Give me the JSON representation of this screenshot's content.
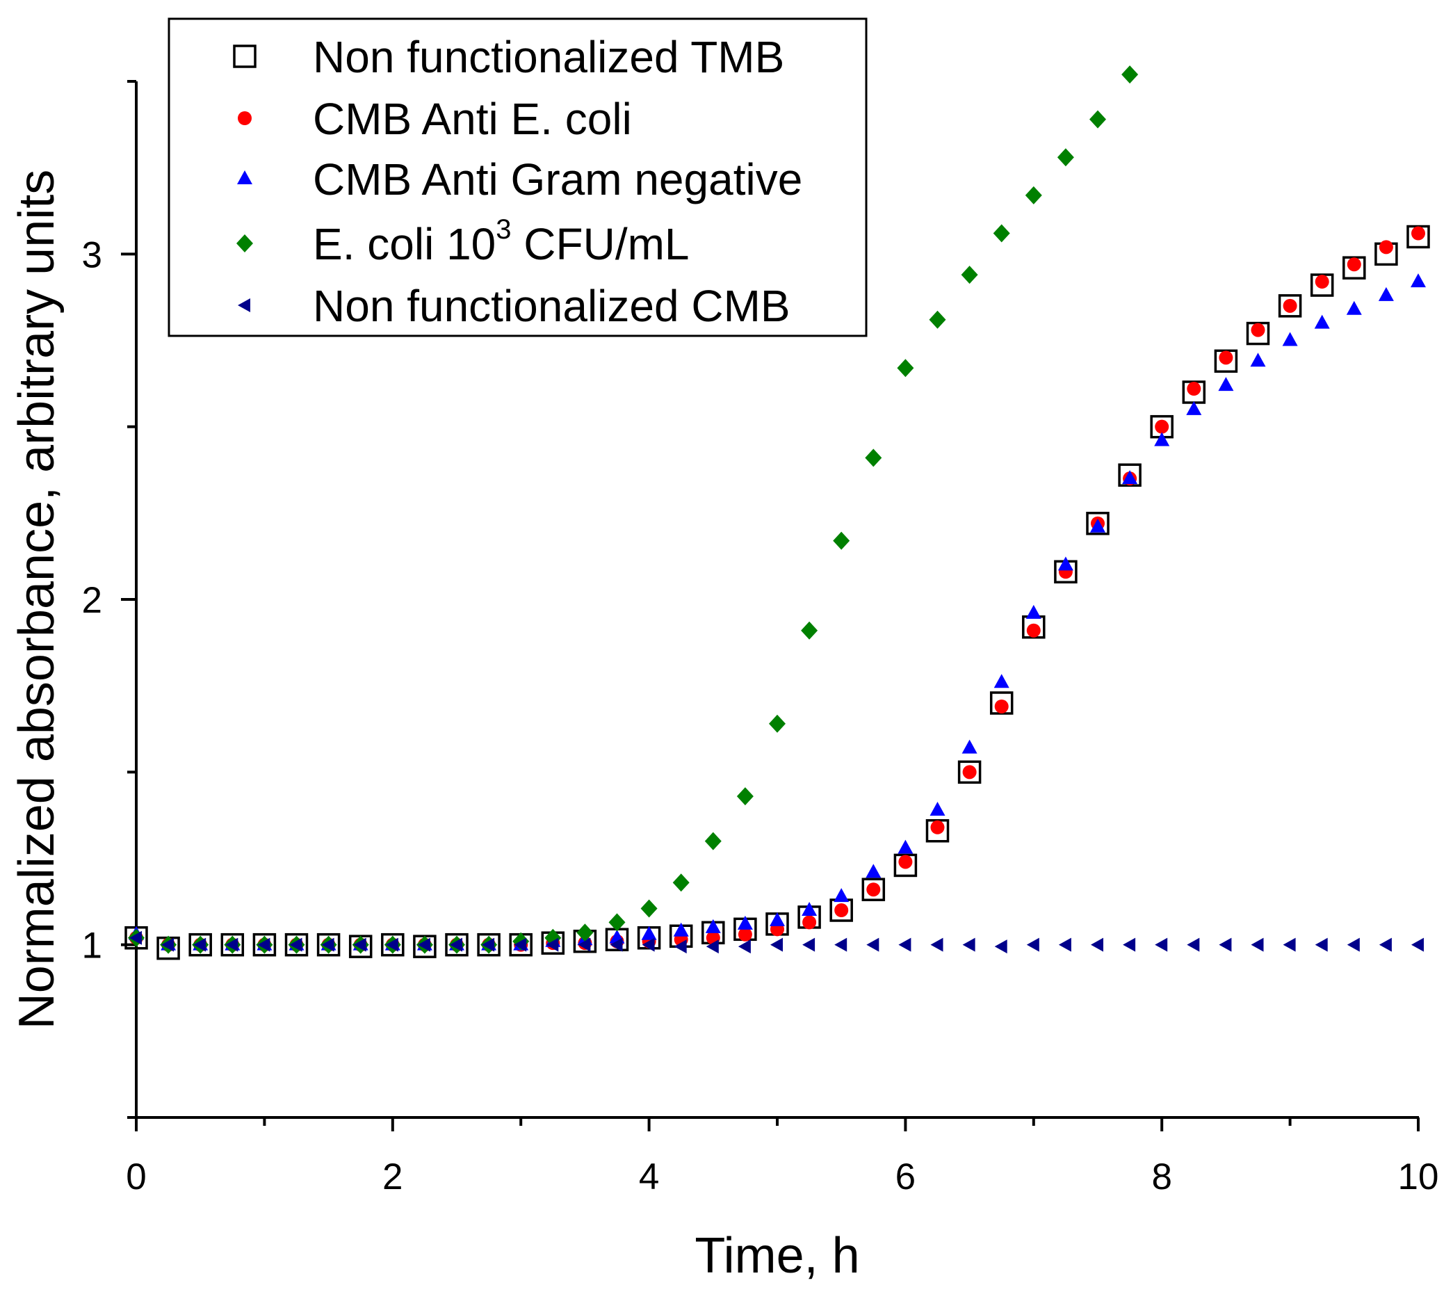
{
  "chart_data": {
    "type": "scatter",
    "title": "",
    "xlabel": "Time, h",
    "ylabel": "Normalized absorbance, arbitrary units",
    "xlim": [
      0,
      10
    ],
    "ylim": [
      0.5,
      3.5
    ],
    "x_major_ticks": [
      0,
      2,
      4,
      6,
      8,
      10
    ],
    "x_tick_labels": [
      "0",
      "2",
      "4",
      "6",
      "8",
      "10"
    ],
    "x_minor_step": 1,
    "y_major_ticks": [
      1,
      2,
      3
    ],
    "y_tick_labels": [
      "1",
      "2",
      "3"
    ],
    "y_minor_step": 0.5,
    "grid": false,
    "legend_position": "top-left",
    "x": [
      0,
      0.25,
      0.5,
      0.75,
      1,
      1.25,
      1.5,
      1.75,
      2,
      2.25,
      2.5,
      2.75,
      3,
      3.25,
      3.5,
      3.75,
      4,
      4.25,
      4.5,
      4.75,
      5,
      5.25,
      5.5,
      5.75,
      6,
      6.25,
      6.5,
      6.75,
      7,
      7.25,
      7.5,
      7.75,
      8,
      8.25,
      8.5,
      8.75,
      9,
      9.25,
      9.5,
      9.75,
      10
    ],
    "series": [
      {
        "name": "Non functionalized TMB",
        "name_parts": [
          "Non functionalized TMB"
        ],
        "marker": "open-square",
        "color": "#000000",
        "values": [
          1.02,
          0.99,
          1.0,
          1.0,
          1.0,
          1.0,
          1.0,
          0.995,
          1.0,
          0.995,
          1.0,
          1.0,
          1.0,
          1.005,
          1.01,
          1.015,
          1.02,
          1.025,
          1.035,
          1.045,
          1.06,
          1.08,
          1.1,
          1.16,
          1.23,
          1.33,
          1.5,
          1.7,
          1.92,
          2.08,
          2.22,
          2.36,
          2.5,
          2.6,
          2.69,
          2.77,
          2.85,
          2.91,
          2.96,
          3.0,
          3.05
        ]
      },
      {
        "name": "CMB Anti E. coli",
        "name_parts": [
          "CMB Anti E. coli"
        ],
        "marker": "circle",
        "color": "#ff0000",
        "values": [
          1.02,
          1.0,
          1.0,
          1.0,
          1.0,
          1.0,
          1.0,
          1.0,
          1.0,
          1.0,
          1.0,
          1.0,
          1.0,
          1.005,
          1.005,
          1.01,
          1.01,
          1.015,
          1.02,
          1.03,
          1.045,
          1.065,
          1.1,
          1.16,
          1.24,
          1.34,
          1.5,
          1.69,
          1.91,
          2.08,
          2.22,
          2.35,
          2.5,
          2.61,
          2.7,
          2.78,
          2.85,
          2.92,
          2.97,
          3.02,
          3.06
        ]
      },
      {
        "name": "CMB Anti Gram negative",
        "name_parts": [
          "CMB Anti Gram negative"
        ],
        "marker": "triangle-up",
        "color": "#0000ff",
        "values": [
          1.03,
          1.0,
          1.0,
          1.0,
          1.0,
          1.0,
          1.0,
          1.0,
          1.0,
          1.0,
          1.0,
          1.0,
          1.0,
          1.01,
          1.015,
          1.02,
          1.03,
          1.04,
          1.05,
          1.06,
          1.07,
          1.1,
          1.14,
          1.21,
          1.28,
          1.39,
          1.57,
          1.76,
          1.96,
          2.1,
          2.21,
          2.35,
          2.46,
          2.55,
          2.62,
          2.69,
          2.75,
          2.8,
          2.84,
          2.88,
          2.92
        ]
      },
      {
        "name": "E. coli 10³ CFU/mL",
        "name_parts": [
          "E. coli 10",
          "3",
          " CFU/mL"
        ],
        "marker": "diamond",
        "color": "#008000",
        "x_count": 32,
        "values": [
          1.02,
          1.0,
          1.0,
          1.0,
          1.0,
          1.0,
          1.0,
          1.0,
          1.0,
          1.0,
          1.0,
          1.0,
          1.01,
          1.02,
          1.035,
          1.065,
          1.105,
          1.18,
          1.3,
          1.43,
          1.64,
          1.91,
          2.17,
          2.41,
          2.67,
          2.81,
          2.94,
          3.06,
          3.17,
          3.28,
          3.39,
          3.52
        ]
      },
      {
        "name": "Non functionalized CMB",
        "name_parts": [
          "Non functionalized CMB"
        ],
        "marker": "triangle-left",
        "color": "#00008b",
        "values": [
          1.02,
          1.0,
          1.0,
          1.0,
          1.0,
          1.0,
          1.0,
          1.0,
          1.0,
          1.0,
          1.0,
          1.0,
          1.0,
          1.0,
          1.0,
          1.0,
          1.0,
          0.995,
          0.995,
          0.995,
          1.0,
          1.0,
          1.0,
          1.0,
          1.0,
          1.0,
          1.0,
          0.995,
          1.0,
          1.0,
          1.0,
          1.0,
          1.0,
          1.0,
          1.0,
          1.0,
          1.0,
          1.0,
          1.0,
          1.0,
          1.0
        ]
      }
    ]
  }
}
